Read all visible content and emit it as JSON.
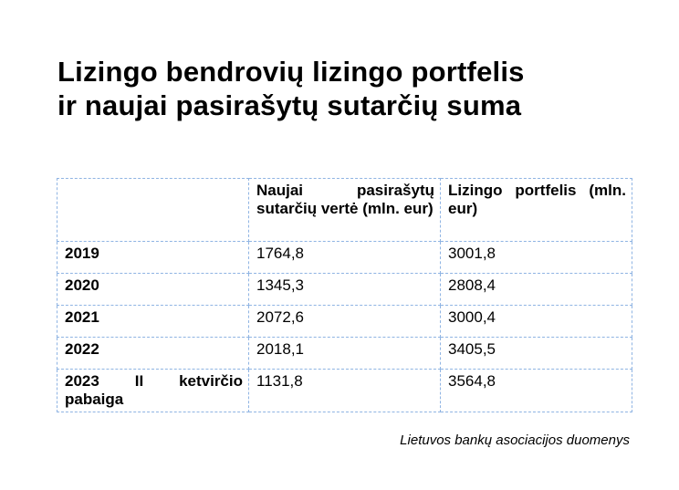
{
  "title": {
    "lines": [
      "Lizingo bendrovių lizingo portfelis",
      "ir naujai pasirašytų sutarčių suma"
    ]
  },
  "table": {
    "header": [
      "",
      "Naujai pasirašytų sutarčių vertė (mln. eur)",
      "Lizingo portfelis (mln. eur)"
    ],
    "rows": [
      [
        "2019",
        "1764,8",
        "3001,8"
      ],
      [
        "2020",
        "1345,3",
        "2808,4"
      ],
      [
        "2021",
        "2072,6",
        "3000,4"
      ],
      [
        "2022",
        "2018,1",
        "3405,5"
      ],
      [
        "2023 II ketvirčio pabaiga",
        "1131,8",
        "3564,8"
      ]
    ]
  },
  "source": "Lietuvos bankų asociacijos duomenys"
}
